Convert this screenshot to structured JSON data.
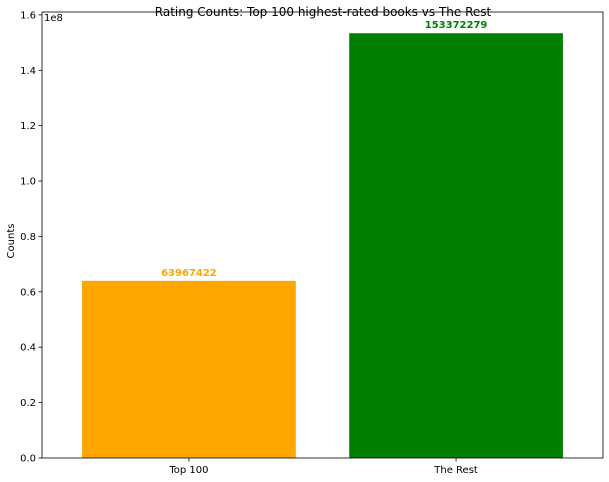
{
  "chart_data": {
    "type": "bar",
    "title": "Rating Counts: Top 100 highest-rated books vs The Rest",
    "xlabel": "",
    "ylabel": "Counts",
    "categories": [
      "Top 100",
      "The Rest"
    ],
    "values": [
      63967422,
      153372279
    ],
    "value_labels": [
      "63967422",
      "153372279"
    ],
    "bar_colors": [
      "#ffa500",
      "#008000"
    ],
    "ylim": [
      0,
      161040893
    ],
    "y_ticks": [
      0,
      20000000,
      40000000,
      60000000,
      80000000,
      100000000,
      120000000,
      140000000,
      160000000
    ],
    "y_tick_labels": [
      "0.0",
      "0.2",
      "0.4",
      "0.6",
      "0.8",
      "1.0",
      "1.2",
      "1.4",
      "1.6"
    ],
    "y_offset_label": "1e8",
    "grid": false,
    "legend": "none"
  }
}
